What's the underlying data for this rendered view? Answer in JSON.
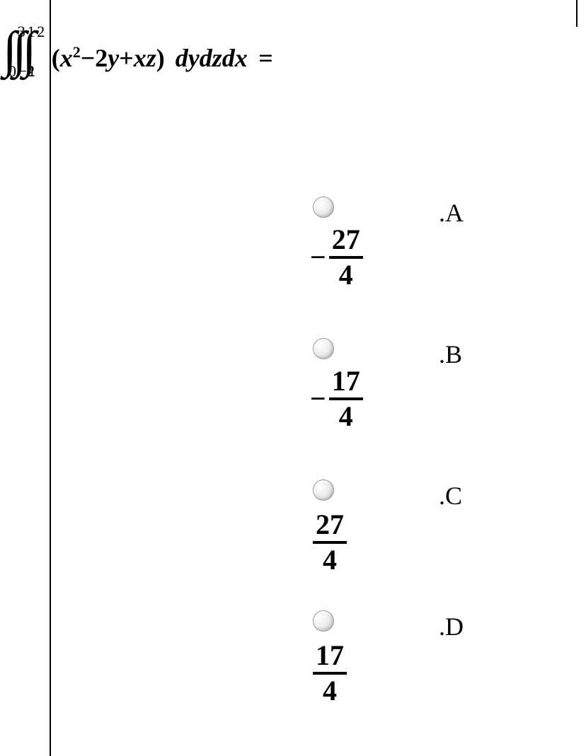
{
  "question": {
    "integrals": [
      {
        "upper": "3",
        "lower": "0"
      },
      {
        "upper": "1",
        "lower": "−2"
      },
      {
        "upper": "2",
        "lower": "1"
      }
    ],
    "integrand_open": "(",
    "integrand_x2": "x",
    "integrand_x2_sup": "2",
    "integrand_rest": "−2y+xz",
    "integrand_close": ")",
    "differentials": "dydzdx",
    "equals": "="
  },
  "options": {
    "A": {
      "label": ".A",
      "negative": "−",
      "numerator": "27",
      "denominator": "4"
    },
    "B": {
      "label": ".B",
      "negative": "−",
      "numerator": "17",
      "denominator": "4"
    },
    "C": {
      "label": ".C",
      "negative": "",
      "numerator": "27",
      "denominator": "4"
    },
    "D": {
      "label": ".D",
      "negative": "",
      "numerator": "17",
      "denominator": "4"
    }
  },
  "colors": {
    "text": "#000000",
    "background": "#ffffff",
    "line": "#000000"
  }
}
